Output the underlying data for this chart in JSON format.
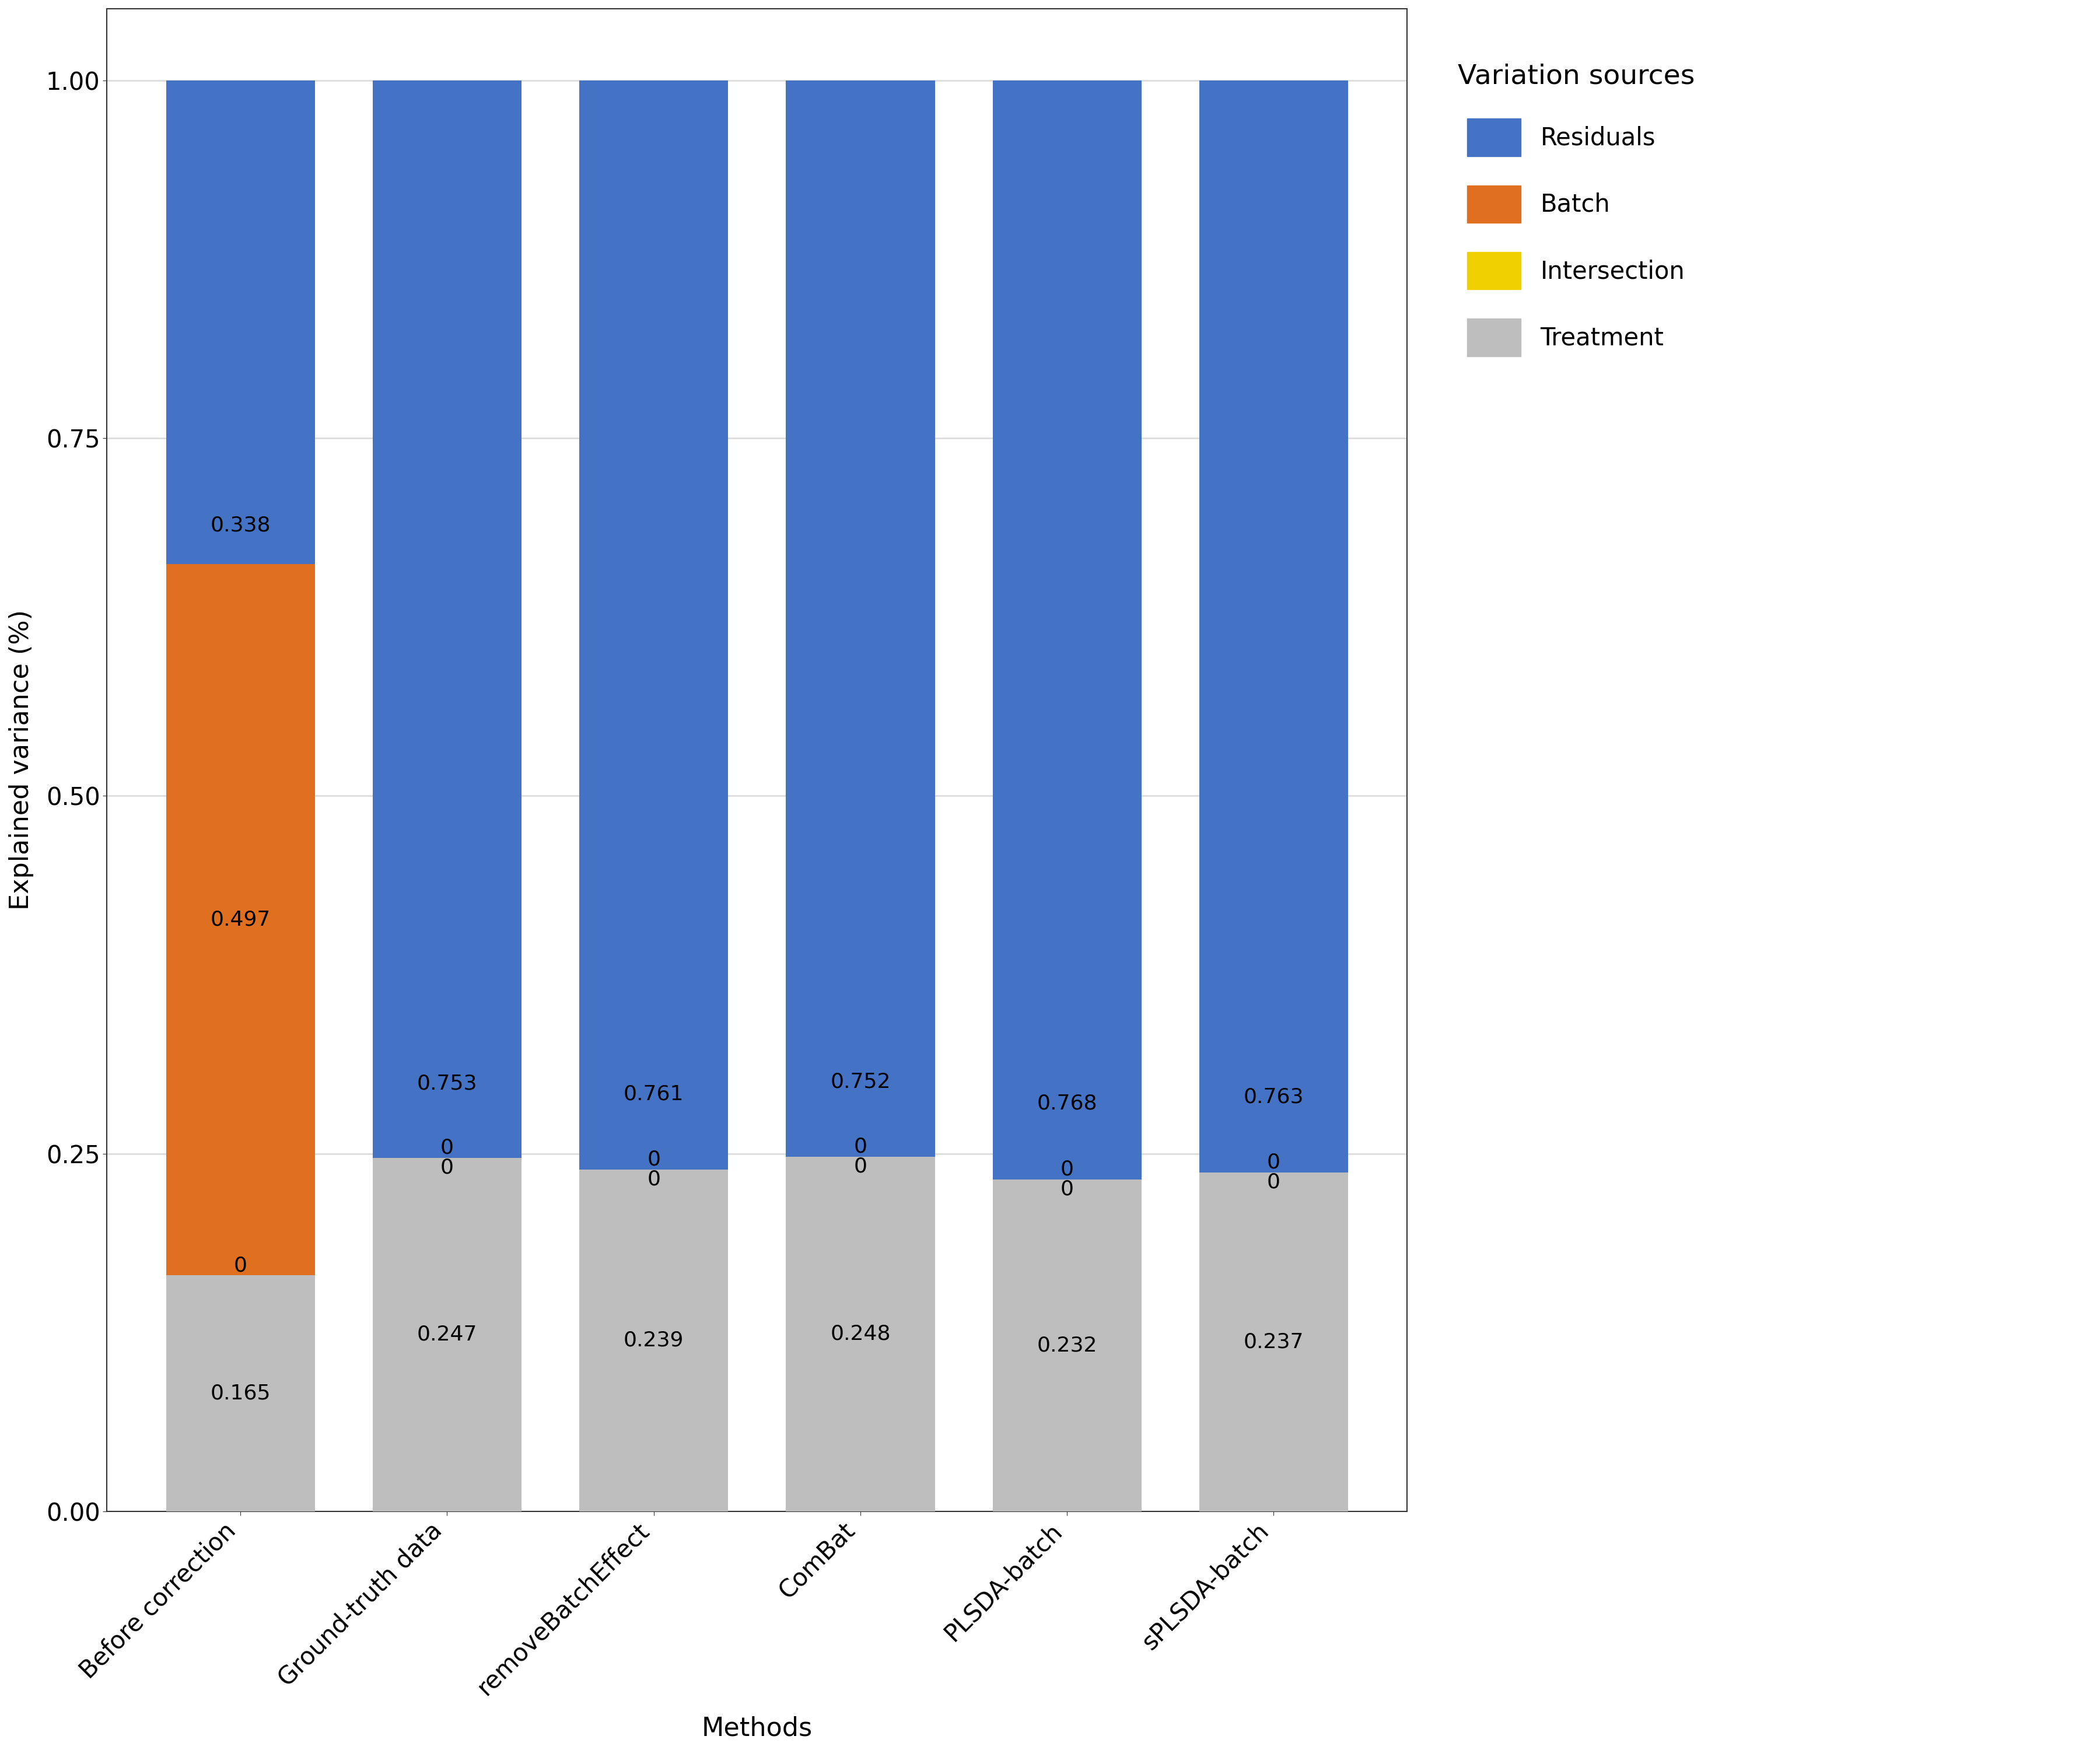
{
  "categories": [
    "Before correction",
    "Ground-truth data",
    "removeBatchEffect",
    "ComBat",
    "PLSDA-batch",
    "sPLSDA-batch"
  ],
  "treatment": [
    0.165,
    0.247,
    0.239,
    0.248,
    0.232,
    0.237
  ],
  "intersection": [
    0.0,
    0.0,
    0.0,
    0.0,
    0.0,
    0.0
  ],
  "batch": [
    0.497,
    0.0,
    0.0,
    0.0,
    0.0,
    0.0
  ],
  "residuals": [
    0.338,
    0.753,
    0.761,
    0.752,
    0.768,
    0.763
  ],
  "treatment_labels": [
    "0.165",
    "0.247",
    "0.239",
    "0.248",
    "0.232",
    "0.237"
  ],
  "intersection_labels": [
    "0",
    "0",
    "0",
    "0",
    "0",
    "0"
  ],
  "batch_labels": [
    "0.497",
    "0",
    "0",
    "0",
    "0",
    "0"
  ],
  "residuals_labels": [
    "0.338",
    "0.753",
    "0.761",
    "0.752",
    "0.768",
    "0.763"
  ],
  "color_residuals": "#4472C4",
  "color_batch": "#E07020",
  "color_intersection": "#F0D000",
  "color_treatment": "#BEBEBE",
  "ylabel": "Explained variance (%)",
  "xlabel": "Methods",
  "legend_title": "Variation sources",
  "legend_labels": [
    "Residuals",
    "Batch",
    "Intersection",
    "Treatment"
  ],
  "ylim": [
    0,
    1.05
  ],
  "yticks": [
    0.0,
    0.25,
    0.5,
    0.75,
    1.0
  ],
  "background_color": "#FFFFFF",
  "grid_color": "#DDDDDD",
  "bar_width": 0.72,
  "label_fontsize": 32,
  "tick_fontsize": 30,
  "legend_fontsize": 30,
  "bar_label_fontsize": 26
}
